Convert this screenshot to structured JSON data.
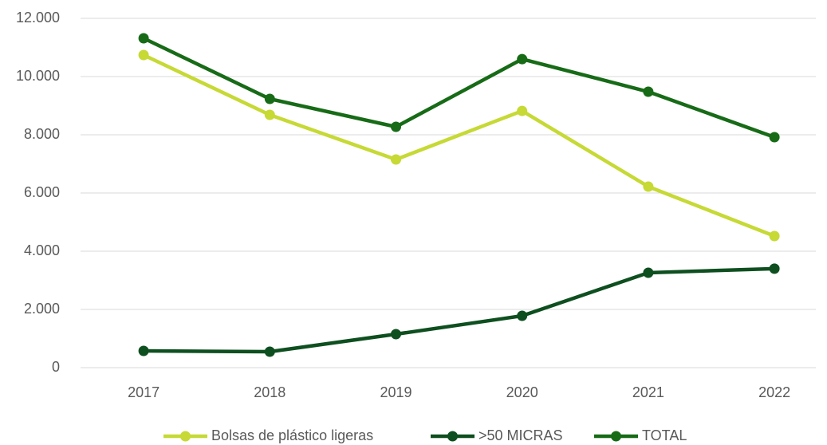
{
  "chart_data": {
    "type": "line",
    "categories": [
      "2017",
      "2018",
      "2019",
      "2020",
      "2021",
      "2022"
    ],
    "series": [
      {
        "name": "Bolsas de plástico ligeras",
        "color": "#c6d935",
        "values": [
          10740,
          8685,
          7150,
          8820,
          6220,
          4520
        ]
      },
      {
        "name": ">50 MICRAS",
        "color": "#0e4f1f",
        "values": [
          575,
          548,
          1150,
          1780,
          3260,
          3400
        ]
      },
      {
        "name": "TOTAL",
        "color": "#176b17",
        "values": [
          11315,
          9233,
          8274,
          10600,
          9479,
          7918
        ]
      }
    ],
    "ylim": [
      0,
      12000
    ],
    "yticks": [
      0,
      {
        "value": 2000,
        "label": "2.000"
      },
      {
        "value": 4000,
        "label": "4.000"
      },
      {
        "value": 6000,
        "label": "6.000"
      },
      {
        "value": 8000,
        "label": "8.000"
      },
      {
        "value": 10000,
        "label": "10.000"
      },
      {
        "value": 12000,
        "label": "12.000"
      }
    ],
    "grid": true,
    "legend": "bottom"
  }
}
